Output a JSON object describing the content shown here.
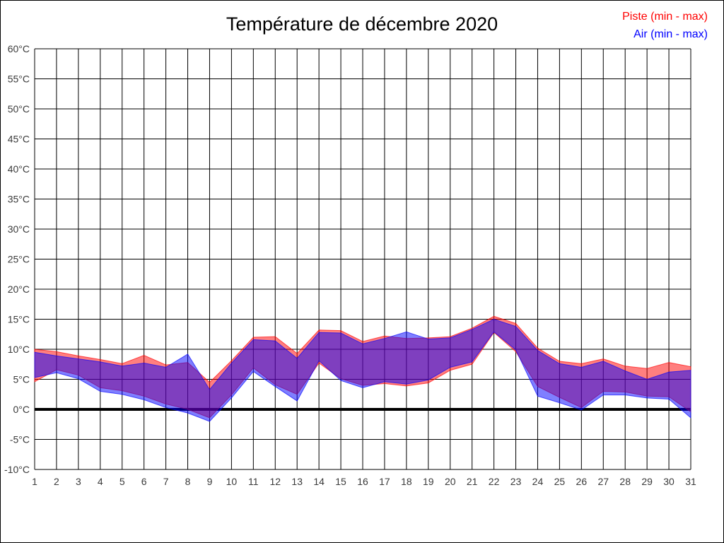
{
  "chart_data": {
    "type": "area",
    "title": "Température de décembre 2020",
    "y_unit": "°C",
    "ylim": [
      -10,
      60
    ],
    "y_ticks": [
      60,
      55,
      50,
      45,
      40,
      35,
      30,
      25,
      20,
      15,
      10,
      5,
      0,
      -5,
      -10
    ],
    "categories": [
      1,
      2,
      3,
      4,
      5,
      6,
      7,
      8,
      9,
      10,
      11,
      12,
      13,
      14,
      15,
      16,
      17,
      18,
      19,
      20,
      21,
      22,
      23,
      24,
      25,
      26,
      27,
      28,
      29,
      30,
      31
    ],
    "grid": "both",
    "zero_line": true,
    "legend_position": "top-right",
    "series": [
      {
        "name": "Piste (min - max)",
        "color": "#FF0000",
        "fill_opacity": 0.5,
        "min": [
          4.6,
          6.6,
          5.7,
          3.6,
          3.1,
          2.2,
          0.9,
          0.0,
          -1.4,
          2.4,
          6.9,
          4.1,
          2.5,
          7.7,
          5.1,
          4.0,
          4.3,
          3.9,
          4.4,
          6.5,
          7.5,
          12.8,
          9.6,
          3.8,
          2.0,
          0.3,
          3.0,
          2.9,
          2.2,
          2.1,
          -0.4
        ],
        "max": [
          10.0,
          9.6,
          8.9,
          8.3,
          7.6,
          9.0,
          7.4,
          7.8,
          4.5,
          8.1,
          12.0,
          12.1,
          9.3,
          13.2,
          13.1,
          11.3,
          12.2,
          11.8,
          11.9,
          12.1,
          13.5,
          15.5,
          14.3,
          10.2,
          8.0,
          7.6,
          8.4,
          7.2,
          6.8,
          7.8,
          7.1
        ]
      },
      {
        "name": "Air (min - max)",
        "color": "#0000FF",
        "fill_opacity": 0.5,
        "min": [
          5.3,
          6.1,
          5.1,
          3.0,
          2.5,
          1.6,
          0.3,
          -0.6,
          -2.0,
          1.9,
          6.3,
          3.8,
          1.4,
          8.1,
          4.8,
          3.6,
          4.6,
          4.2,
          4.9,
          7.0,
          7.9,
          12.9,
          9.9,
          2.2,
          1.1,
          -0.1,
          2.4,
          2.4,
          1.9,
          1.7,
          -1.4
        ],
        "max": [
          9.5,
          8.9,
          8.4,
          7.9,
          7.2,
          7.7,
          7.0,
          9.2,
          3.3,
          7.7,
          11.6,
          11.4,
          8.5,
          12.8,
          12.7,
          10.9,
          11.8,
          12.9,
          11.7,
          11.9,
          13.3,
          15.0,
          13.8,
          9.8,
          7.6,
          7.0,
          8.0,
          6.4,
          5.0,
          6.2,
          6.5
        ]
      }
    ],
    "axis_color": "#000000",
    "label_color": "#3a3a3a"
  }
}
